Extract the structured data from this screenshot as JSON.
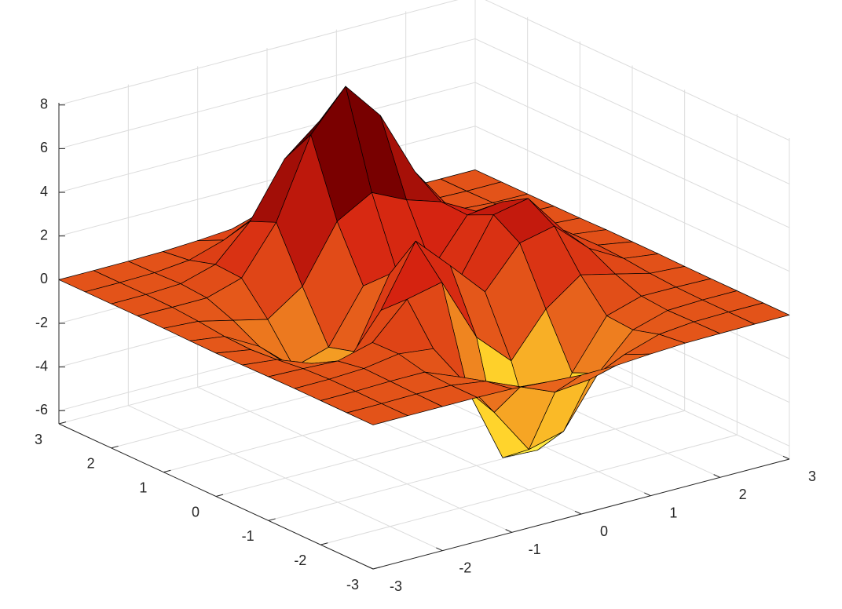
{
  "chart_data": {
    "type": "surface",
    "x": [
      -3,
      -2.5,
      -2,
      -1.5,
      -1,
      -0.5,
      0,
      0.5,
      1,
      1.5,
      2,
      2.5,
      3
    ],
    "y": [
      -3,
      -2.5,
      -2,
      -1.5,
      -1,
      -0.5,
      0,
      0.5,
      1,
      1.5,
      2,
      2.5,
      3
    ],
    "z": [
      [
        0,
        0,
        0,
        0,
        -0.03,
        -0.14,
        -0.24,
        -0.22,
        -0.11,
        -0.03,
        -0.01,
        0,
        0
      ],
      [
        0,
        0,
        0.02,
        0,
        -0.23,
        -0.91,
        -1.57,
        -1.41,
        -0.69,
        -0.18,
        -0.03,
        0,
        0
      ],
      [
        0,
        0.01,
        0.05,
        0.05,
        -0.59,
        -2.63,
        -4.75,
        -4.34,
        -2.1,
        -0.53,
        -0.06,
        0,
        0
      ],
      [
        0,
        0.01,
        0.08,
        0.33,
        0.15,
        -2.19,
        -5.68,
        -5.76,
        -2.63,
        -0.44,
        0.04,
        0.03,
        0
      ],
      [
        -0.01,
        -0.06,
        -0.13,
        0.3,
        1.86,
        2.22,
        -0.72,
        -2.22,
        -0.27,
        0.88,
        0.5,
        0.11,
        0.01
      ],
      [
        -0.03,
        -0.2,
        -0.8,
        -1.21,
        0.8,
        3.55,
        2,
        0.39,
        2.2,
        2.56,
        1.12,
        0.24,
        0.03
      ],
      [
        -0.04,
        -0.3,
        -1.33,
        -2.77,
        -1.65,
        1.48,
        0.98,
        0.38,
        2.94,
        3.27,
        1.41,
        0.3,
        0.03
      ],
      [
        -0.03,
        -0.25,
        -1.12,
        -2.49,
        -2,
        0.39,
        0.46,
        0.38,
        2.38,
        2.56,
        1.09,
        0.23,
        0.03
      ],
      [
        -0.01,
        -0.11,
        -0.48,
        -0.86,
        0.23,
        2.79,
        3.69,
        2.94,
        2.43,
        1.58,
        0.58,
        0.11,
        0.01
      ],
      [
        0,
        -0.02,
        -0.01,
        0.48,
        2.61,
        6.2,
        8,
        6.25,
        3.25,
        1.19,
        0.29,
        0.05,
        0
      ],
      [
        0,
        0.01,
        0.08,
        0.55,
        2.1,
        4.55,
        5.85,
        4.56,
        2.21,
        0.68,
        0.13,
        0.02,
        0
      ],
      [
        0,
        0,
        0.03,
        0.19,
        0.69,
        1.47,
        1.89,
        1.47,
        0.7,
        0.21,
        0.04,
        0,
        0
      ],
      [
        0,
        0,
        0.01,
        0.03,
        0.11,
        0.23,
        0.3,
        0.23,
        0.11,
        0.03,
        0.01,
        0,
        0
      ]
    ],
    "xlim": [
      -3,
      3
    ],
    "ylim": [
      -3,
      3
    ],
    "zlim": [
      -6.6,
      8.1
    ],
    "xticks": [
      -3,
      -2,
      -1,
      0,
      1,
      2,
      3
    ],
    "yticks": [
      -3,
      -2,
      -1,
      0,
      1,
      2,
      3
    ],
    "zticks": [
      -6,
      -4,
      -2,
      0,
      2,
      4,
      6,
      8
    ],
    "grid": true,
    "colormap": [
      "#ffff5a",
      "#ffd22a",
      "#e8641c",
      "#d42010",
      "#7a0000",
      "#1a0000"
    ],
    "edge_color": "#000000"
  }
}
